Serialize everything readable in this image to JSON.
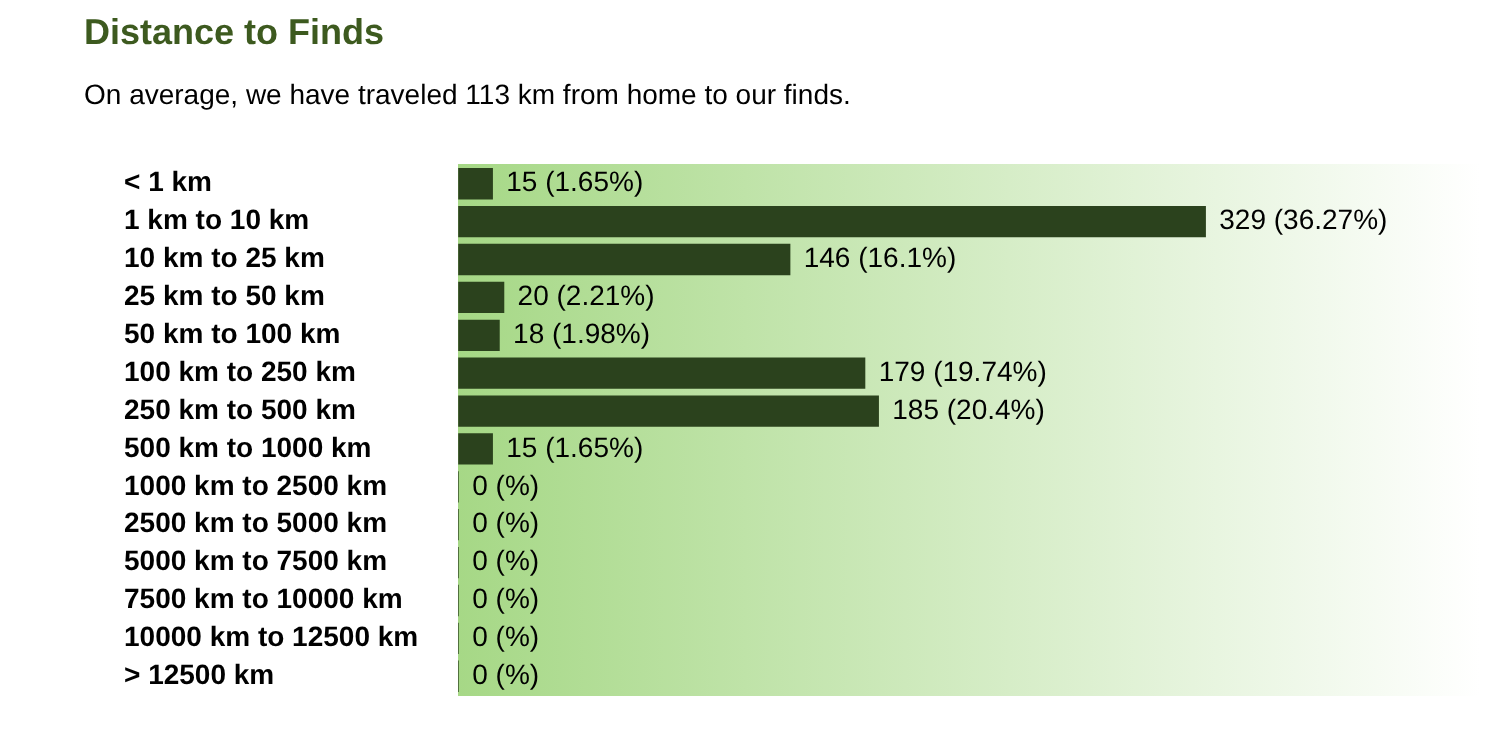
{
  "chart_data": {
    "type": "bar",
    "orientation": "horizontal",
    "title": "Distance to Finds",
    "subtitle": "On average, we have traveled 113 km from home to our finds.",
    "categories": [
      "< 1 km",
      "1 km to 10 km",
      "10 km to 25 km",
      "25 km to 50 km",
      "50 km to 100 km",
      "100 km to 250 km",
      "250 km to 500 km",
      "500 km to 1000 km",
      "1000 km to 2500 km",
      "2500 km to 5000 km",
      "5000 km to 7500 km",
      "7500 km to 10000 km",
      "10000 km to 12500 km",
      "> 12500 km"
    ],
    "values": [
      15,
      329,
      146,
      20,
      18,
      179,
      185,
      15,
      0,
      0,
      0,
      0,
      0,
      0
    ],
    "value_labels": [
      "15 (1.65%)",
      "329 (36.27%)",
      "146 (16.1%)",
      "20 (2.21%)",
      "18 (1.98%)",
      "179 (19.74%)",
      "185 (20.4%)",
      "15 (1.65%)",
      "0 (%)",
      "0 (%)",
      "0 (%)",
      "0 (%)",
      "0 (%)",
      "0 (%)"
    ],
    "color": "#2b421d",
    "grid": false,
    "legend": false
  }
}
